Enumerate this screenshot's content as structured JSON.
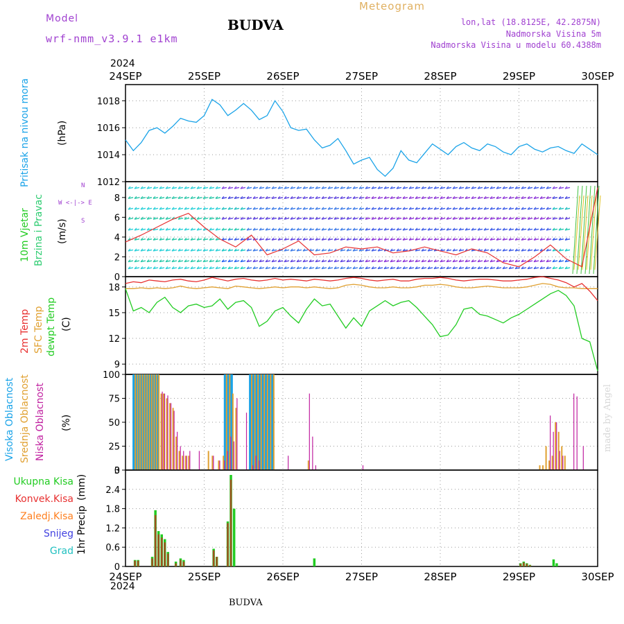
{
  "header": {
    "model_label": "Model",
    "model_name": "wrf-nmm_v3.9.1  e1km",
    "station": "BUDVA",
    "meteogram": "Meteogram",
    "lonlat": "lon,lat (18.8125E, 42.2875N)",
    "elevation": "Nadmorska Visina 5m",
    "model_elevation": "Nadmorska Visina u modelu 60.4388m"
  },
  "time_axis": {
    "year": "2024",
    "labels": [
      "24SEP",
      "25SEP",
      "26SEP",
      "27SEP",
      "28SEP",
      "29SEP",
      "30SEP"
    ]
  },
  "footer": {
    "station": "BUDVA"
  },
  "watermark": "made by Angel",
  "colors": {
    "pressure": "#1aa3e8",
    "wind_label": "#22cc22",
    "wind_label2": "#2ecc71",
    "temp2m": "#e83030",
    "sfc_temp": "#e0a030",
    "dewpt": "#22cc22",
    "high_cloud": "#1aa3e8",
    "mid_cloud": "#e0a030",
    "low_cloud": "#c020a0",
    "total_precip": "#22cc22",
    "conv_precip": "#e83030",
    "freezing": "#ff8020",
    "snow": "#4040e0",
    "hail": "#20c0c0",
    "header_purple": "#a040d0",
    "meteogram_orange": "#e0b060"
  },
  "chart_data": [
    {
      "type": "line",
      "panel": "pressure",
      "ylabel": "Pritisak na nivou mora",
      "unit": "(hPa)",
      "ylim": [
        1012,
        1019.2
      ],
      "yticks": [
        1012,
        1014,
        1016,
        1018
      ],
      "grid": true,
      "x_days": [
        0.0,
        0.1,
        0.2,
        0.3,
        0.4,
        0.5,
        0.6,
        0.7,
        0.8,
        0.9,
        1.0,
        1.1,
        1.2,
        1.3,
        1.4,
        1.5,
        1.6,
        1.7,
        1.8,
        1.9,
        2.0,
        2.1,
        2.2,
        2.3,
        2.4,
        2.5,
        2.6,
        2.7,
        2.8,
        2.9,
        3.0,
        3.1,
        3.2,
        3.3,
        3.4,
        3.5,
        3.6,
        3.7,
        3.8,
        3.9,
        4.0,
        4.1,
        4.2,
        4.3,
        4.4,
        4.5,
        4.6,
        4.7,
        4.8,
        4.9,
        5.0,
        5.1,
        5.2,
        5.3,
        5.4,
        5.5,
        5.6,
        5.7,
        5.8,
        5.9,
        6.0
      ],
      "series": [
        {
          "name": "Pritisak na nivou mora",
          "values": [
            1015.1,
            1014.3,
            1014.9,
            1015.8,
            1016.0,
            1015.6,
            1016.1,
            1016.7,
            1016.5,
            1016.4,
            1016.9,
            1018.1,
            1017.7,
            1016.9,
            1017.3,
            1017.8,
            1017.3,
            1016.6,
            1016.9,
            1018.0,
            1017.2,
            1016.0,
            1015.8,
            1015.9,
            1015.1,
            1014.5,
            1014.7,
            1015.2,
            1014.3,
            1013.3,
            1013.6,
            1013.8,
            1012.9,
            1012.4,
            1013.0,
            1014.3,
            1013.6,
            1013.4,
            1014.1,
            1014.8,
            1014.4,
            1014.0,
            1014.6,
            1014.9,
            1014.5,
            1014.3,
            1014.8,
            1014.6,
            1014.2,
            1014.0,
            1014.6,
            1014.8,
            1014.4,
            1014.2,
            1014.5,
            1014.6,
            1014.3,
            1014.1,
            1014.8,
            1014.4,
            1014.0
          ]
        }
      ]
    },
    {
      "type": "line",
      "panel": "wind",
      "ylabel": "10m Vjetar",
      "ylabel2": "Brzina i Pravac",
      "unit": "(m/s)",
      "compass": "N",
      "compass_e": "E",
      "compass_w": "W",
      "compass_s": "S",
      "compass_row": "W <-|-> E",
      "compass_n": "N",
      "ylim": [
        0,
        9.6
      ],
      "yticks": [
        0,
        2,
        4,
        6,
        8
      ],
      "grid": true,
      "x_days": [
        0.0,
        0.2,
        0.4,
        0.6,
        0.8,
        1.0,
        1.2,
        1.4,
        1.6,
        1.8,
        2.0,
        2.2,
        2.4,
        2.6,
        2.8,
        3.0,
        3.2,
        3.4,
        3.6,
        3.8,
        4.0,
        4.2,
        4.4,
        4.6,
        4.8,
        5.0,
        5.2,
        5.4,
        5.6,
        5.8,
        6.0
      ],
      "series": [
        {
          "name": "brzina",
          "values": [
            3.5,
            4.2,
            5.0,
            5.8,
            6.4,
            5.0,
            3.8,
            3.0,
            4.2,
            2.2,
            2.8,
            3.6,
            2.2,
            2.4,
            3.0,
            2.8,
            3.0,
            2.4,
            2.6,
            3.0,
            2.6,
            2.2,
            2.8,
            2.4,
            1.4,
            1.0,
            2.0,
            3.2,
            1.8,
            1.0,
            9.0
          ]
        }
      ],
      "wind_rows": [
        0.8,
        1.5,
        2.6,
        3.7,
        4.7,
        5.8,
        6.8,
        7.9,
        8.9
      ]
    },
    {
      "type": "line",
      "panel": "temperature",
      "ylabel": "2m Temp",
      "ylabel2": "SFC Temp",
      "ylabel3": "dewpt Temp",
      "unit": "(C)",
      "ylim": [
        7.8,
        19.2
      ],
      "yticks": [
        9,
        12,
        15,
        18
      ],
      "grid": true,
      "x_days": [
        0.0,
        0.1,
        0.2,
        0.3,
        0.4,
        0.5,
        0.6,
        0.7,
        0.8,
        0.9,
        1.0,
        1.1,
        1.2,
        1.3,
        1.4,
        1.5,
        1.6,
        1.7,
        1.8,
        1.9,
        2.0,
        2.1,
        2.2,
        2.3,
        2.4,
        2.5,
        2.6,
        2.7,
        2.8,
        2.9,
        3.0,
        3.1,
        3.2,
        3.3,
        3.4,
        3.5,
        3.6,
        3.7,
        3.8,
        3.9,
        4.0,
        4.1,
        4.2,
        4.3,
        4.4,
        4.5,
        4.6,
        4.7,
        4.8,
        4.9,
        5.0,
        5.1,
        5.2,
        5.3,
        5.4,
        5.5,
        5.6,
        5.7,
        5.8,
        5.9,
        6.0
      ],
      "series": [
        {
          "name": "SFC Temp",
          "values": [
            17.8,
            17.8,
            17.9,
            17.8,
            17.9,
            17.8,
            17.9,
            18.1,
            17.9,
            17.8,
            17.9,
            18.0,
            17.9,
            17.8,
            18.1,
            18.0,
            17.9,
            17.8,
            17.9,
            18.0,
            17.9,
            18.0,
            18.0,
            17.9,
            18.0,
            17.9,
            17.8,
            17.9,
            18.2,
            18.3,
            18.2,
            18.0,
            17.9,
            17.9,
            18.0,
            17.9,
            17.9,
            18.0,
            18.2,
            18.2,
            18.3,
            18.2,
            18.0,
            17.9,
            17.9,
            18.0,
            18.1,
            18.0,
            17.9,
            17.9,
            17.9,
            18.0,
            18.2,
            18.4,
            18.3,
            18.0,
            17.9,
            17.9,
            17.8,
            17.8,
            17.8
          ]
        },
        {
          "name": "2m Temp",
          "values": [
            18.4,
            18.6,
            18.5,
            18.8,
            18.7,
            18.6,
            18.8,
            18.9,
            18.7,
            18.6,
            18.8,
            19.1,
            18.9,
            18.7,
            18.9,
            19.0,
            18.8,
            18.7,
            18.8,
            19.0,
            18.8,
            18.9,
            18.8,
            18.7,
            18.9,
            18.8,
            18.7,
            18.8,
            19.0,
            19.1,
            19.0,
            18.8,
            18.7,
            18.8,
            18.9,
            18.7,
            18.7,
            18.9,
            19.0,
            19.0,
            19.1,
            19.0,
            18.8,
            18.7,
            18.8,
            18.9,
            18.9,
            18.8,
            18.7,
            18.7,
            18.8,
            18.9,
            19.1,
            19.2,
            19.0,
            18.8,
            18.5,
            18.0,
            18.4,
            17.5,
            16.4
          ]
        },
        {
          "name": "dewpt Temp",
          "values": [
            17.8,
            15.2,
            15.6,
            15.0,
            16.2,
            16.8,
            15.6,
            15.0,
            15.8,
            16.0,
            15.6,
            15.8,
            16.6,
            15.4,
            16.2,
            16.4,
            15.6,
            13.4,
            14.0,
            15.2,
            15.6,
            14.6,
            13.8,
            15.4,
            16.6,
            15.8,
            16.0,
            14.6,
            13.2,
            14.4,
            13.4,
            15.2,
            15.8,
            16.4,
            15.8,
            16.2,
            16.4,
            15.6,
            14.6,
            13.6,
            12.2,
            12.4,
            13.6,
            15.4,
            15.6,
            14.8,
            14.6,
            14.2,
            13.8,
            14.4,
            14.8,
            15.4,
            16.0,
            16.6,
            17.2,
            17.6,
            17.0,
            15.8,
            12.0,
            11.6,
            8.2
          ]
        }
      ]
    },
    {
      "type": "bar",
      "panel": "clouds",
      "ylabel": "Visoka Oblacnost",
      "ylabel2": "Srednja Oblacnost",
      "ylabel3": "Niska Oblacnost",
      "unit": "(%)",
      "ylim": [
        0,
        100
      ],
      "yticks": [
        0,
        25,
        50,
        75,
        100
      ],
      "grid": true,
      "x_days": [
        0.12,
        0.15,
        0.18,
        0.21,
        0.24,
        0.27,
        0.3,
        0.33,
        0.36,
        0.39,
        0.42,
        0.45,
        0.48,
        0.52,
        0.56,
        0.6,
        0.64,
        0.68,
        0.72,
        0.76,
        0.8,
        0.86,
        0.92,
        1.0,
        1.05,
        1.1,
        1.18,
        1.24,
        1.28,
        1.32,
        1.36,
        1.4,
        1.52,
        1.56,
        1.6,
        1.64,
        1.68,
        1.72,
        1.76,
        1.8,
        1.84,
        1.88,
        2.05,
        2.1,
        2.32,
        2.36,
        2.4,
        2.44,
        3.0,
        5.26,
        5.3,
        5.34,
        5.38,
        5.42,
        5.46,
        5.5,
        5.54,
        5.58,
        5.62,
        5.66,
        5.68,
        5.72,
        5.8
      ],
      "series": [
        {
          "name": "Visoka Oblacnost",
          "values": [
            100,
            100,
            100,
            100,
            100,
            100,
            100,
            100,
            100,
            100,
            100,
            0,
            0,
            0,
            0,
            0,
            0,
            0,
            0,
            0,
            0,
            0,
            0,
            0,
            0,
            0,
            0,
            0,
            100,
            100,
            100,
            0,
            0,
            0,
            100,
            100,
            100,
            100,
            100,
            100,
            100,
            100,
            0,
            0,
            0,
            0,
            0,
            0,
            0,
            0,
            0,
            0,
            0,
            0,
            0,
            0,
            0,
            0,
            0,
            0,
            0,
            0,
            0
          ]
        },
        {
          "name": "Srednja Oblacnost",
          "values": [
            100,
            100,
            100,
            100,
            100,
            100,
            100,
            100,
            100,
            100,
            100,
            80,
            80,
            75,
            70,
            65,
            35,
            20,
            15,
            15,
            15,
            0,
            0,
            0,
            20,
            15,
            10,
            15,
            100,
            100,
            80,
            65,
            0,
            0,
            100,
            100,
            100,
            100,
            100,
            100,
            100,
            100,
            0,
            0,
            10,
            0,
            0,
            0,
            0,
            5,
            5,
            25,
            10,
            15,
            50,
            40,
            25,
            15,
            0,
            0,
            0,
            0,
            0
          ]
        },
        {
          "name": "Niska Oblacnost",
          "values": [
            0,
            0,
            0,
            0,
            0,
            0,
            0,
            0,
            0,
            0,
            0,
            82,
            80,
            78,
            70,
            62,
            40,
            25,
            20,
            15,
            20,
            0,
            20,
            0,
            0,
            15,
            10,
            10,
            20,
            35,
            30,
            75,
            60,
            0,
            5,
            15,
            10,
            0,
            0,
            0,
            0,
            0,
            15,
            0,
            80,
            35,
            5,
            0,
            5,
            0,
            0,
            0,
            57,
            40,
            50,
            20,
            15,
            0,
            0,
            0,
            80,
            77,
            25
          ]
        }
      ]
    },
    {
      "type": "bar",
      "panel": "precipitation",
      "ylabel": "1hr Precip",
      "unit": "(mm)",
      "legend": [
        "Ukupna Kisa",
        "Konvek.Kisa",
        "Zaledj.Kisa",
        "Snijeg",
        "Grad"
      ],
      "ylim": [
        0,
        3
      ],
      "yticks": [
        0,
        0.6,
        1.2,
        1.8,
        2.4,
        3
      ],
      "grid": true,
      "x_days": [
        0.12,
        0.16,
        0.34,
        0.38,
        0.42,
        0.46,
        0.5,
        0.54,
        0.64,
        0.7,
        0.74,
        1.12,
        1.16,
        1.3,
        1.34,
        1.38,
        2.4,
        5.02,
        5.06,
        5.1,
        5.14,
        5.44,
        5.48
      ],
      "series": [
        {
          "name": "Ukupna Kisa",
          "values": [
            0.2,
            0.2,
            0.3,
            1.75,
            1.1,
            1.0,
            0.85,
            0.45,
            0.15,
            0.25,
            0.2,
            0.55,
            0.3,
            1.4,
            2.85,
            1.8,
            0.25,
            0.1,
            0.15,
            0.1,
            0.05,
            0.22,
            0.1
          ]
        },
        {
          "name": "Konvek.Kisa",
          "values": [
            0.18,
            0.18,
            0.25,
            1.6,
            1.0,
            0.9,
            0.75,
            0.4,
            0.1,
            0.2,
            0.15,
            0.5,
            0.3,
            1.35,
            2.7,
            0.0,
            0.0,
            0.08,
            0.12,
            0.08,
            0.04,
            0.0,
            0.0
          ]
        }
      ]
    }
  ]
}
